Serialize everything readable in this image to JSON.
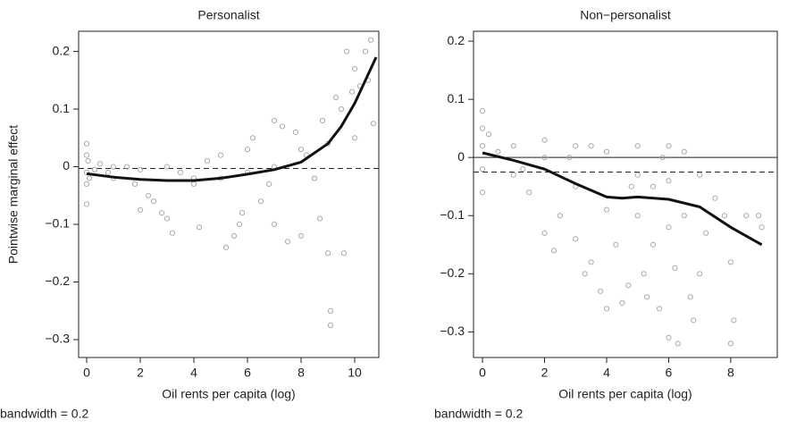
{
  "chart_data": [
    {
      "type": "scatter",
      "title": "Personalist",
      "xlabel": "Oil rents per capita (log)",
      "ylabel": "Pointwise marginal effect",
      "note": "bandwidth = 0.2",
      "xlim": [
        -0.3,
        10.9
      ],
      "ylim": [
        -0.331,
        0.235
      ],
      "xticks": [
        0,
        2,
        4,
        6,
        8,
        10
      ],
      "yticks": [
        0.2,
        0.1,
        0,
        {
          "value": -0.1,
          "label": "−0.1"
        },
        {
          "value": -0.2,
          "label": "−0.2"
        },
        {
          "value": -0.3,
          "label": "−0.3"
        }
      ],
      "point_color": "#aaaaaa",
      "line_color": "#111111",
      "reference_lines": [
        {
          "value": -0.003,
          "style": "dashed"
        }
      ],
      "points": {
        "x": [
          0,
          0,
          0,
          0,
          0,
          0.05,
          0.1,
          0.3,
          0.5,
          0.8,
          1,
          1.5,
          1.8,
          2,
          2.3,
          2.5,
          2.8,
          3,
          3,
          3.2,
          3.5,
          4,
          4.2,
          4.5,
          5,
          5.2,
          5.5,
          5.7,
          5.8,
          6,
          6.2,
          6.5,
          6.8,
          7,
          7,
          7.3,
          7.5,
          7.8,
          8,
          8,
          8.2,
          8.5,
          8.7,
          8.8,
          9,
          9,
          9.1,
          9.1,
          9.3,
          9.5,
          9.6,
          9.7,
          10,
          10,
          10.2,
          10.4,
          10.6,
          10.7,
          10.5,
          9.9,
          6,
          7,
          4,
          2,
          1,
          5
        ],
        "y": [
          0.04,
          0.02,
          -0.01,
          -0.03,
          -0.065,
          0.01,
          -0.02,
          -0.005,
          0.005,
          -0.01,
          -0.02,
          0.0,
          -0.03,
          -0.075,
          -0.05,
          -0.06,
          -0.08,
          -0.09,
          0.0,
          -0.115,
          -0.01,
          -0.03,
          -0.105,
          0.01,
          0.02,
          -0.14,
          -0.12,
          -0.1,
          -0.08,
          0.03,
          0.05,
          -0.06,
          -0.03,
          0.08,
          -0.1,
          0.07,
          -0.13,
          0.06,
          0.03,
          -0.12,
          0.02,
          -0.02,
          -0.09,
          0.08,
          -0.15,
          0.04,
          -0.25,
          -0.275,
          0.12,
          0.1,
          -0.15,
          0.2,
          0.17,
          0.05,
          0.14,
          0.2,
          0.22,
          0.075,
          0.15,
          0.13,
          -0.01,
          0.0,
          -0.02,
          -0.005,
          0.0,
          -0.02
        ]
      },
      "smooth": {
        "x": [
          0,
          1,
          2,
          3,
          4,
          5,
          6,
          7,
          8,
          9,
          9.5,
          10,
          10.5,
          10.8
        ],
        "y": [
          -0.012,
          -0.018,
          -0.022,
          -0.024,
          -0.024,
          -0.02,
          -0.013,
          -0.005,
          0.008,
          0.04,
          0.07,
          0.11,
          0.16,
          0.19
        ]
      }
    },
    {
      "type": "scatter",
      "title": "Non−personalist",
      "xlabel": "Oil rents per capita (log)",
      "note": "bandwidth = 0.2",
      "xlim": [
        -0.29,
        9.5
      ],
      "ylim": [
        -0.344,
        0.217
      ],
      "xticks": [
        0,
        2,
        4,
        6,
        8
      ],
      "yticks": [
        0.2,
        0.1,
        0,
        {
          "value": -0.1,
          "label": "−0.1"
        },
        {
          "value": -0.2,
          "label": "−0.2"
        },
        {
          "value": -0.3,
          "label": "−0.3"
        }
      ],
      "point_color": "#aaaaaa",
      "line_color": "#111111",
      "reference_lines": [
        {
          "value": 0,
          "style": "solid"
        },
        {
          "value": -0.025,
          "style": "dashed"
        }
      ],
      "points": {
        "x": [
          0,
          0,
          0,
          0,
          0,
          0.2,
          0.5,
          1,
          1.3,
          1.5,
          2,
          2,
          2.3,
          2.5,
          2.8,
          3,
          3,
          3.3,
          3.5,
          3.5,
          3.8,
          4,
          4,
          4,
          4.3,
          4.5,
          4.7,
          4.8,
          5,
          5,
          5.2,
          5.3,
          5.5,
          5.5,
          5.7,
          5.8,
          6,
          6,
          6,
          6.2,
          6.3,
          6.5,
          6.5,
          6.7,
          6.8,
          7,
          7,
          7.2,
          7.5,
          7.8,
          8,
          8,
          8.1,
          8.5,
          8.9,
          9,
          3,
          2,
          1,
          5,
          6
        ],
        "y": [
          0.08,
          0.05,
          0.02,
          -0.02,
          -0.06,
          0.04,
          0.01,
          0.02,
          -0.02,
          -0.06,
          -0.13,
          0.03,
          -0.16,
          -0.1,
          0.0,
          -0.14,
          -0.05,
          -0.2,
          -0.18,
          0.02,
          -0.23,
          -0.26,
          -0.09,
          0.01,
          -0.15,
          -0.25,
          -0.22,
          -0.05,
          -0.1,
          0.02,
          -0.2,
          -0.24,
          -0.15,
          -0.05,
          -0.26,
          0.0,
          -0.31,
          -0.12,
          0.02,
          -0.19,
          -0.32,
          -0.1,
          0.01,
          -0.24,
          -0.28,
          -0.03,
          -0.2,
          -0.13,
          -0.07,
          -0.1,
          -0.18,
          -0.32,
          -0.28,
          -0.1,
          -0.1,
          -0.12,
          0.02,
          0.0,
          -0.03,
          -0.03,
          -0.04
        ]
      },
      "smooth": {
        "x": [
          0,
          1,
          2,
          3,
          4,
          4.5,
          5,
          6,
          7,
          8,
          9
        ],
        "y": [
          0.008,
          -0.005,
          -0.02,
          -0.045,
          -0.068,
          -0.07,
          -0.068,
          -0.072,
          -0.085,
          -0.12,
          -0.15
        ]
      }
    }
  ]
}
